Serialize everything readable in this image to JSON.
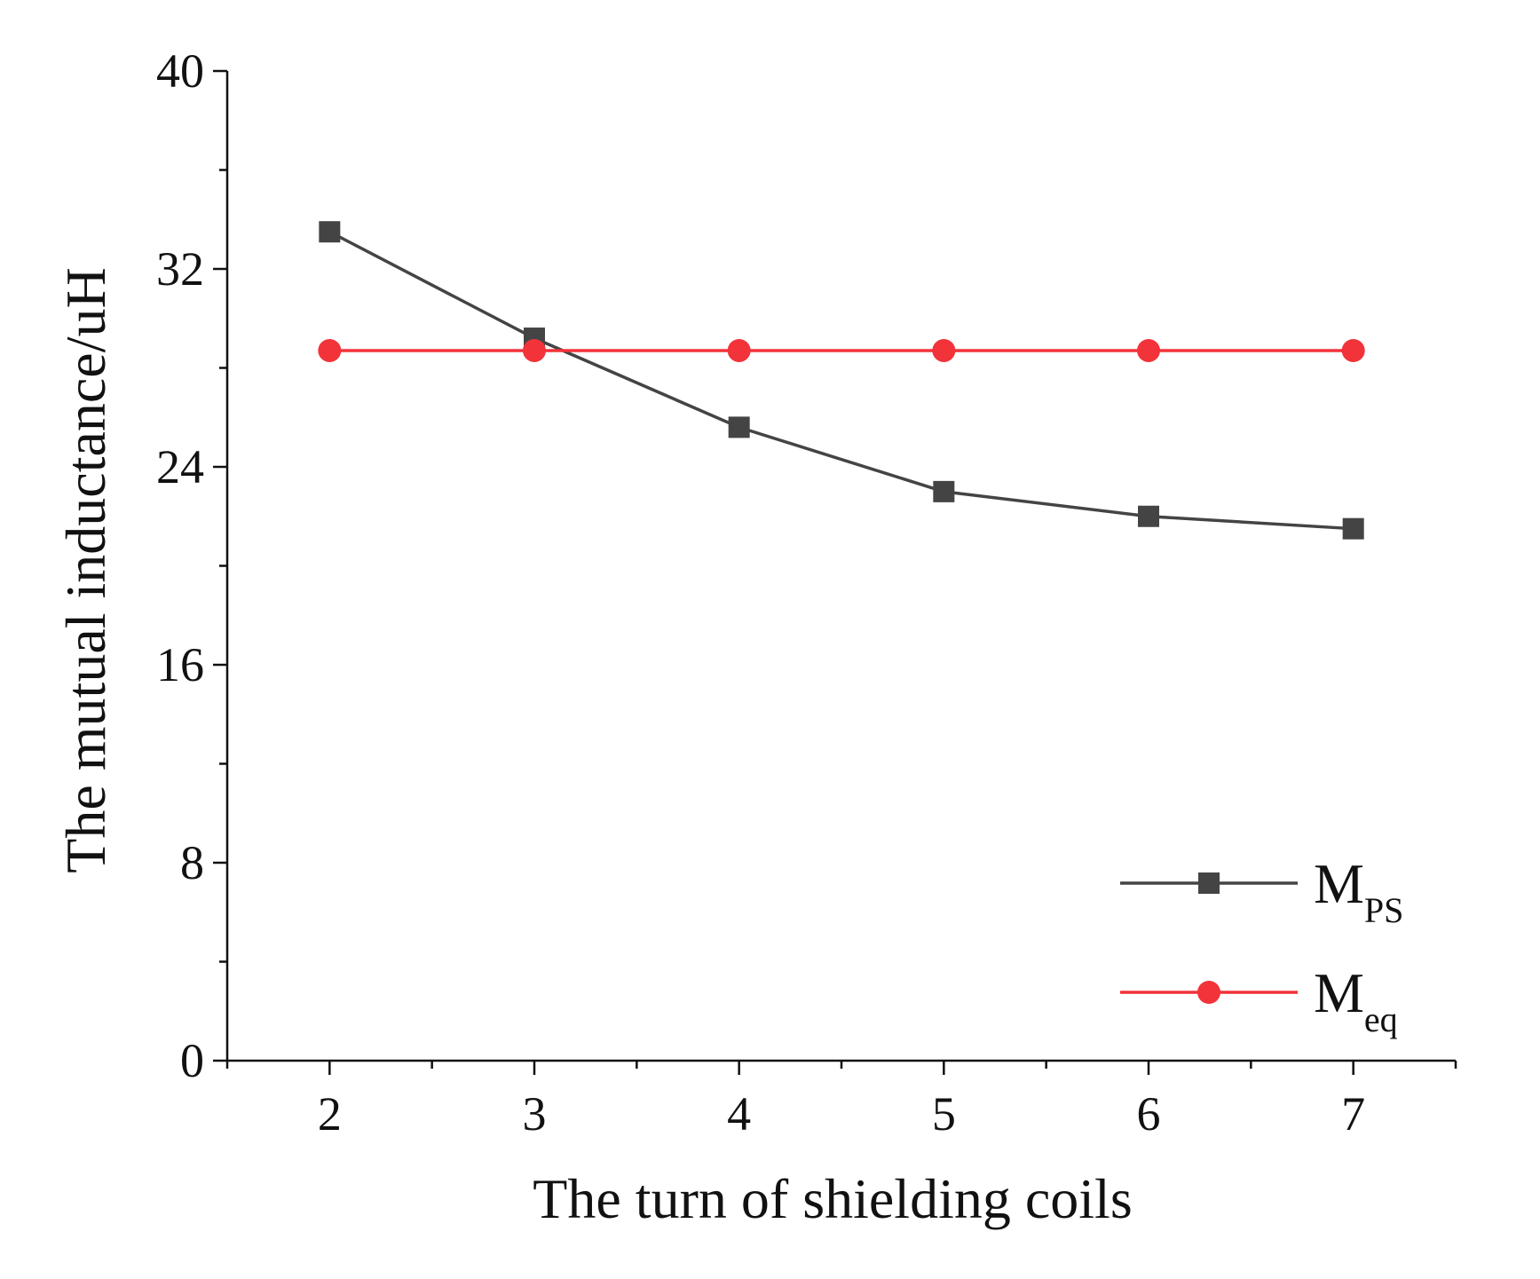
{
  "chart_data": {
    "type": "line",
    "title": "",
    "xlabel": "The turn of shielding coils",
    "ylabel": "The mutual inductance/uH",
    "x": [
      2,
      3,
      4,
      5,
      6,
      7
    ],
    "xticks": [
      "2",
      "3",
      "4",
      "5",
      "6",
      "7"
    ],
    "xlim": [
      1.5,
      7.5
    ],
    "yticks": [
      "0",
      "8",
      "16",
      "24",
      "32",
      "40"
    ],
    "ylim": [
      0,
      40
    ],
    "grid": false,
    "legend_position": "bottom-right",
    "series": [
      {
        "name": "M",
        "name_subscript": "PS",
        "values": [
          33.5,
          29.2,
          25.6,
          23.0,
          22.0,
          21.5
        ],
        "color": "#444444",
        "marker": "square"
      },
      {
        "name": "M",
        "name_subscript": "eq",
        "values": [
          28.7,
          28.7,
          28.7,
          28.7,
          28.7,
          28.7
        ],
        "color": "#f2333a",
        "marker": "circle"
      }
    ]
  }
}
